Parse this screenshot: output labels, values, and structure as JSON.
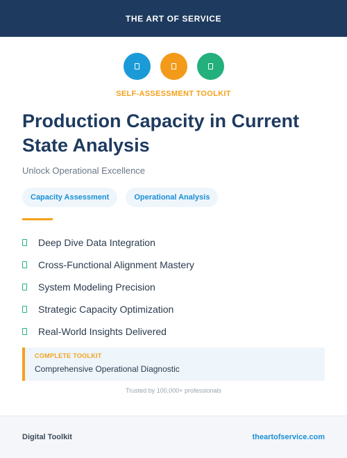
{
  "header": {
    "brand": "THE ART OF SERVICE"
  },
  "icons": [
    {
      "name": "square-icon",
      "color": "#1a9bd7"
    },
    {
      "name": "square-icon",
      "color": "#f39a1a"
    },
    {
      "name": "square-icon",
      "color": "#23b07d"
    }
  ],
  "kicker": "SELF-ASSESSMENT TOOLKIT",
  "title": "Production Capacity in Current State Analysis",
  "subtitle": "Unlock Operational Excellence",
  "tags": [
    "Capacity Assessment",
    "Operational Analysis"
  ],
  "features": [
    "Deep Dive Data Integration",
    "Cross-Functional Alignment Mastery",
    "System Modeling Precision",
    "Strategic Capacity Optimization",
    "Real-World Insights Delivered"
  ],
  "callout": {
    "label": "COMPLETE TOOLKIT",
    "value": "Comprehensive Operational Diagnostic"
  },
  "trust": "Trusted by 100,000+ professionals",
  "footer": {
    "left": "Digital Toolkit",
    "right": "theartofservice.com"
  },
  "colors": {
    "navy": "#1e3a5f",
    "accent_orange": "#f4a11b",
    "accent_blue": "#1a8fd6",
    "accent_green": "#23b07d"
  }
}
